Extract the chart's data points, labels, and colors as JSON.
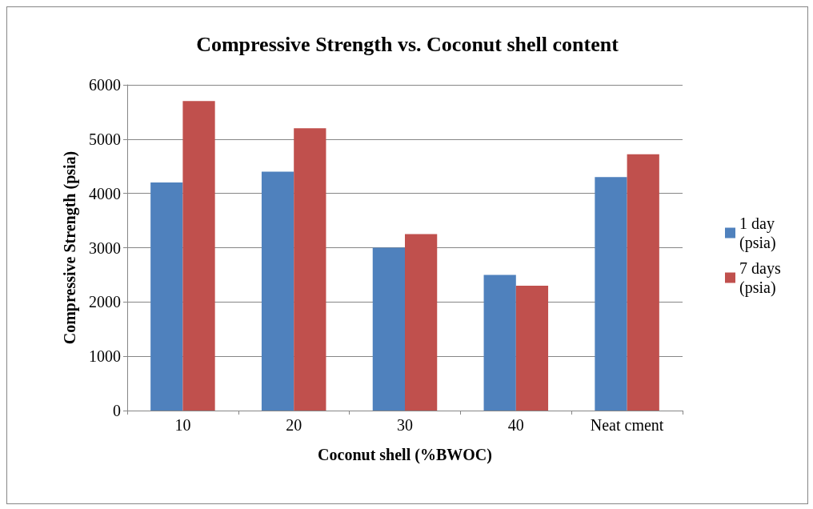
{
  "chart_data": {
    "type": "bar",
    "title": "Compressive Strength vs. Coconut shell content",
    "xlabel": "Coconut shell (%BWOC)",
    "ylabel": "Compressive Strength (psia)",
    "categories": [
      "10",
      "20",
      "30",
      "40",
      "Neat cment"
    ],
    "series": [
      {
        "name": "1 day (psia)",
        "color": "#4f81bd",
        "values": [
          4200,
          4400,
          3000,
          2500,
          4300
        ]
      },
      {
        "name": "7 days (psia)",
        "color": "#c0504d",
        "values": [
          5700,
          5200,
          3250,
          2300,
          4720
        ]
      }
    ],
    "ylim": [
      0,
      6000
    ],
    "yticks": [
      0,
      1000,
      2000,
      3000,
      4000,
      5000,
      6000
    ],
    "grid": "y",
    "legend": "right"
  }
}
